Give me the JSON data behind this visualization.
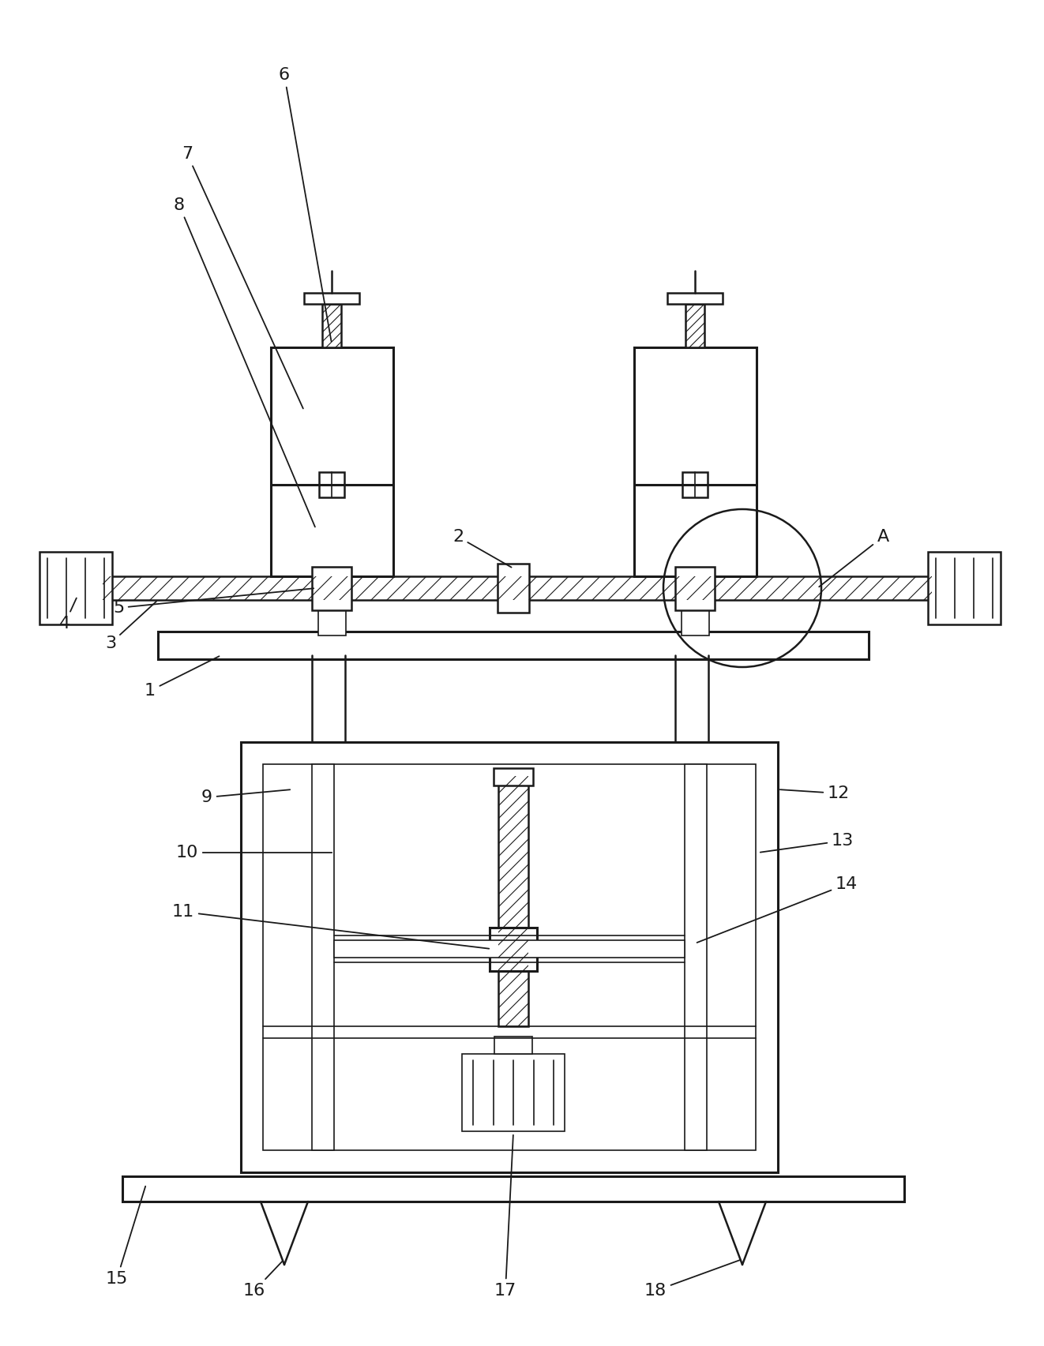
{
  "bg_color": "#ffffff",
  "line_color": "#1a1a1a",
  "line_width": 1.8,
  "label_fontsize": 16
}
